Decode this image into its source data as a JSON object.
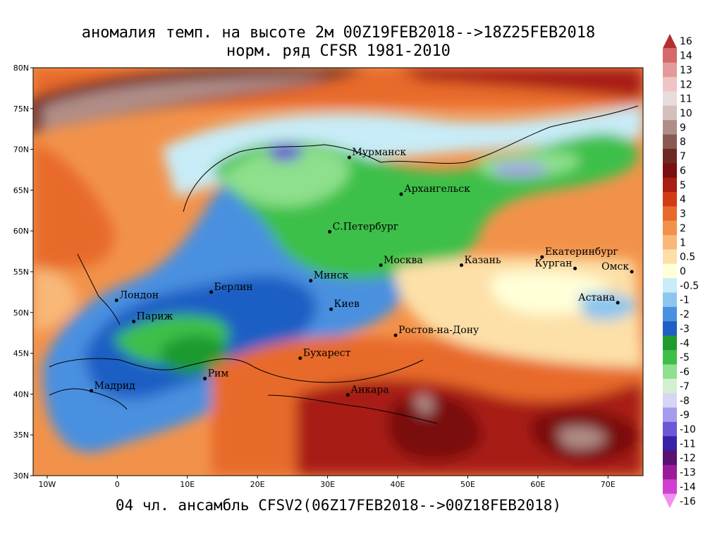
{
  "title_line1": "аномалия темп. на высоте 2м 00Z19FEB2018-->18Z25FEB2018",
  "title_line2": "норм. ряд CFSR 1981-2010",
  "footer": "04 чл. ансамбль CFSV2(06Z17FEB2018-->00Z18FEB2018)",
  "map": {
    "lon_range": [
      -12,
      75
    ],
    "lat_range": [
      30,
      80
    ],
    "lat_ticks": [
      {
        "v": 30,
        "label": "30N"
      },
      {
        "v": 35,
        "label": "35N"
      },
      {
        "v": 40,
        "label": "40N"
      },
      {
        "v": 45,
        "label": "45N"
      },
      {
        "v": 50,
        "label": "50N"
      },
      {
        "v": 55,
        "label": "55N"
      },
      {
        "v": 60,
        "label": "60N"
      },
      {
        "v": 65,
        "label": "65N"
      },
      {
        "v": 70,
        "label": "70N"
      },
      {
        "v": 75,
        "label": "75N"
      },
      {
        "v": 80,
        "label": "80N"
      }
    ],
    "lon_ticks": [
      {
        "v": -10,
        "label": "10W"
      },
      {
        "v": 0,
        "label": "0"
      },
      {
        "v": 10,
        "label": "10E"
      },
      {
        "v": 20,
        "label": "20E"
      },
      {
        "v": 30,
        "label": "30E"
      },
      {
        "v": 40,
        "label": "40E"
      },
      {
        "v": 50,
        "label": "50E"
      },
      {
        "v": 60,
        "label": "60E"
      },
      {
        "v": 70,
        "label": "70E"
      }
    ],
    "cities": [
      {
        "name": "Мурманск",
        "lon": 33.1,
        "lat": 69.0
      },
      {
        "name": "Архангельск",
        "lon": 40.5,
        "lat": 64.5
      },
      {
        "name": "С.Петербург",
        "lon": 30.3,
        "lat": 59.9
      },
      {
        "name": "Москва",
        "lon": 37.6,
        "lat": 55.8
      },
      {
        "name": "Казань",
        "lon": 49.1,
        "lat": 55.8
      },
      {
        "name": "Екатеринбург",
        "lon": 60.6,
        "lat": 56.8
      },
      {
        "name": "Курган",
        "lon": 65.3,
        "lat": 55.4
      },
      {
        "name": "Омск",
        "lon": 73.4,
        "lat": 55.0
      },
      {
        "name": "Астана",
        "lon": 71.4,
        "lat": 51.2
      },
      {
        "name": "Минск",
        "lon": 27.6,
        "lat": 53.9
      },
      {
        "name": "Берлин",
        "lon": 13.4,
        "lat": 52.5
      },
      {
        "name": "Лондон",
        "lon": -0.1,
        "lat": 51.5
      },
      {
        "name": "Париж",
        "lon": 2.35,
        "lat": 48.9
      },
      {
        "name": "Киев",
        "lon": 30.5,
        "lat": 50.4
      },
      {
        "name": "Ростов-на-Дону",
        "lon": 39.7,
        "lat": 47.2
      },
      {
        "name": "Бухарест",
        "lon": 26.1,
        "lat": 44.4
      },
      {
        "name": "Рим",
        "lon": 12.5,
        "lat": 41.9
      },
      {
        "name": "Мадрид",
        "lon": -3.7,
        "lat": 40.4
      },
      {
        "name": "Анкара",
        "lon": 32.9,
        "lat": 39.9
      }
    ]
  },
  "colorbar": {
    "levels": [
      {
        "label": "16",
        "color": "#b03030"
      },
      {
        "label": "14",
        "color": "#d46a6a"
      },
      {
        "label": "13",
        "color": "#e39a9a"
      },
      {
        "label": "12",
        "color": "#efc4c4"
      },
      {
        "label": "11",
        "color": "#e8dcdc"
      },
      {
        "label": "10",
        "color": "#d4bfbd"
      },
      {
        "label": "9",
        "color": "#b08d88"
      },
      {
        "label": "8",
        "color": "#8a5a52"
      },
      {
        "label": "7",
        "color": "#6e2a22"
      },
      {
        "label": "6",
        "color": "#7a1010"
      },
      {
        "label": "5",
        "color": "#a81e12"
      },
      {
        "label": "4",
        "color": "#d33a16"
      },
      {
        "label": "3",
        "color": "#e86a2a"
      },
      {
        "label": "2",
        "color": "#f2924a"
      },
      {
        "label": "1",
        "color": "#f8b878"
      },
      {
        "label": "0.5",
        "color": "#fde0a8"
      },
      {
        "label": "0",
        "color": "#ffffd8"
      },
      {
        "label": "-0.5",
        "color": "#c8ecf8"
      },
      {
        "label": "-1",
        "color": "#8cc6ee"
      },
      {
        "label": "-2",
        "color": "#4a90e0"
      },
      {
        "label": "-3",
        "color": "#1f5fc4"
      },
      {
        "label": "-4",
        "color": "#1e9a2e"
      },
      {
        "label": "-5",
        "color": "#3cc048"
      },
      {
        "label": "-6",
        "color": "#8ee08c"
      },
      {
        "label": "-7",
        "color": "#d4f0d0"
      },
      {
        "label": "-8",
        "color": "#d8d4f4"
      },
      {
        "label": "-9",
        "color": "#a49cec"
      },
      {
        "label": "-10",
        "color": "#6a58d4"
      },
      {
        "label": "-11",
        "color": "#3a20a8"
      },
      {
        "label": "-12",
        "color": "#5a1070"
      },
      {
        "label": "-13",
        "color": "#9a1a9a"
      },
      {
        "label": "-14",
        "color": "#d040d0"
      },
      {
        "label": "-16",
        "color": "#f090f0"
      }
    ]
  }
}
